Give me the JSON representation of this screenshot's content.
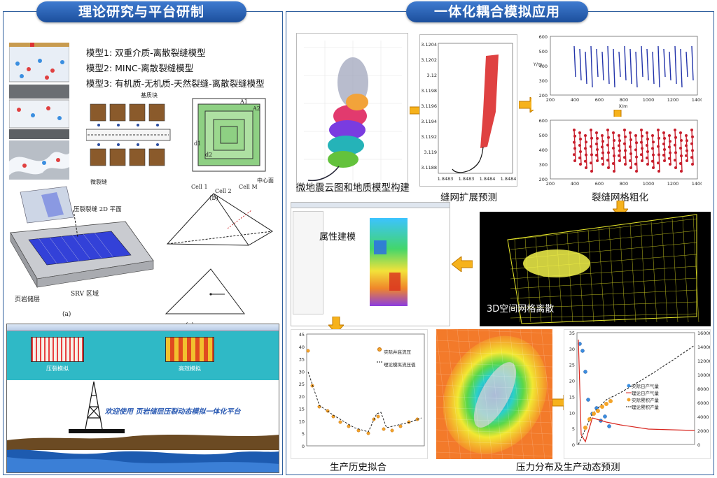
{
  "banners": {
    "left": "理论研究与平台研制",
    "right": "一体化耦合模拟应用"
  },
  "models": [
    "模型1: 双重介质-离散裂缝模型",
    "模型2: MINC-离散裂缝模型",
    "模型3: 有机质-无机质-天然裂缝-离散裂缝模型"
  ],
  "left_labels": {
    "matrix_block": "基质块",
    "micro_fracture": "微裂缝",
    "plane_2d": "压裂裂缝 2D 平面",
    "shale": "页岩储层",
    "srv": "SRV 区域",
    "fig_a": "(a)",
    "fig_b": "(b)",
    "fig_c": "(c)",
    "cell1": "Cell 1",
    "cell2": "Cell 2",
    "cellM": "Cell M",
    "center": "中心面",
    "a1": "A1",
    "a2": "A2",
    "d1": "d1",
    "d2": "d2"
  },
  "platform": {
    "tab1": "压裂模拟",
    "tab2": "高效模拟",
    "welcome": "欢迎使用 页岩储层压裂动态模拟一体化平台"
  },
  "captions": {
    "microseismic": "微地震云图和地质模型构建",
    "network": "缝网扩展预测",
    "coarsen": "裂缝网格粗化",
    "property": "属性建模",
    "mesh3d": "3D空间网格离散",
    "history": "生产历史拟合",
    "pressure": "压力分布及生产动态预测"
  },
  "history_legend": [
    "实际井底流压",
    "理论模拟流压值"
  ],
  "forecast_legend": [
    "实际日产气量",
    "理论日产气量",
    "实际累积产量",
    "理论累积产量"
  ],
  "axes": {
    "coarsen_top_y": [
      "600",
      "500",
      "400",
      "300",
      "200"
    ],
    "coarsen_top_x": [
      "200",
      "400",
      "600",
      "800",
      "1000",
      "1200",
      "1400"
    ],
    "coarsen_top_xlabel": "X/m",
    "coarsen_top_ylabel": "Y/m",
    "coarsen_bot_y": [
      "600",
      "500",
      "400",
      "300",
      "200"
    ],
    "coarsen_bot_x": [
      "200",
      "400",
      "600",
      "800",
      "1000",
      "1200",
      "1400"
    ],
    "network_y": [
      "3.1204",
      "3.1202",
      "3.12",
      "3.1198",
      "3.1196",
      "3.1194",
      "3.1192",
      "3.119",
      "3.1188"
    ],
    "network_x": [
      "1.8483",
      "1.8483",
      "1.8484",
      "1.8484"
    ],
    "history_y": [
      "45",
      "40",
      "35",
      "30",
      "25",
      "20",
      "15",
      "10",
      "5",
      "0"
    ],
    "forecast_y": [
      "35",
      "30",
      "25",
      "20",
      "15",
      "10",
      "5",
      "0"
    ],
    "forecast_y2": [
      "16000",
      "14000",
      "12000",
      "10000",
      "8000",
      "6000",
      "4000",
      "2000",
      "0"
    ]
  }
}
